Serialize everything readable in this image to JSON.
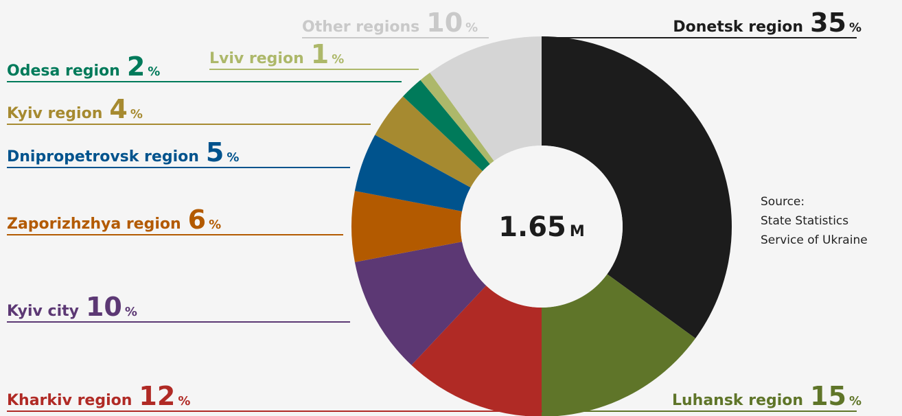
{
  "chart_data": {
    "type": "donut",
    "categories": [
      "Donetsk region",
      "Luhansk region",
      "Kharkiv region",
      "Kyiv city",
      "Zaporizhzhya region",
      "Dnipropetrovsk region",
      "Kyiv region",
      "Odesa region",
      "Lviv region",
      "Other regions"
    ],
    "values": [
      35,
      15,
      12,
      10,
      6,
      5,
      4,
      2,
      1,
      10
    ],
    "colors": [
      "#1c1c1c",
      "#5f7529",
      "#b02a25",
      "#5c3874",
      "#b35a00",
      "#00538d",
      "#a68a30",
      "#007a5a",
      "#adb86a",
      "#d5d5d5"
    ],
    "value_unit": "%",
    "center_value": 1.65,
    "center_unit": "M",
    "source": [
      "Source:",
      "State Statistics",
      "Service of Ukraine"
    ]
  }
}
